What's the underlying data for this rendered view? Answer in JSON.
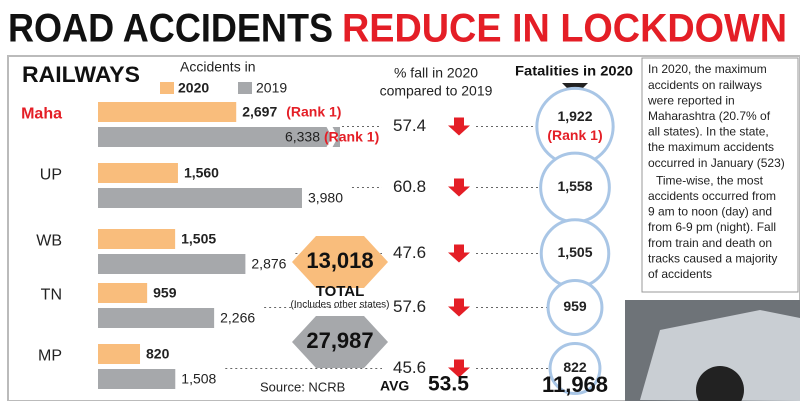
{
  "chart_data": {
    "type": "hbar",
    "title_part1": "ROAD ACCIDENTS",
    "title_part2": "REDUCE IN LOCKDOWN",
    "subtitle": "RAILWAYS",
    "legend_title": "Accidents in",
    "categories": [
      "Maha",
      "UP",
      "WB",
      "TN",
      "MP"
    ],
    "series": [
      {
        "name": "2020",
        "color": "#f9bd7c",
        "values": [
          2697,
          1560,
          1505,
          959,
          820
        ],
        "value_labels": [
          "2,697",
          "1,560",
          "1,505",
          "959",
          "820"
        ]
      },
      {
        "name": "2019",
        "color": "#a6a8ab",
        "values": [
          6338,
          3980,
          2876,
          2266,
          1508
        ],
        "value_labels": [
          "6,338",
          "3,980",
          "2,876",
          "2,266",
          "1,508"
        ]
      }
    ],
    "xlim": [
      0,
      4000
    ],
    "rank_annotations": [
      "(Rank 1)",
      "(Rank 1)",
      "(Rank 1)"
    ],
    "fall_header": [
      "% fall in 2020",
      "compared to 2019"
    ],
    "fall_values": [
      57.4,
      60.8,
      47.6,
      57.6,
      45.6
    ],
    "fatalities_header": "Fatalities in 2020",
    "fatalities": [
      1922,
      1558,
      1505,
      959,
      822
    ],
    "fatalities_labels": [
      "1,922",
      "1,558",
      "1,505",
      "959",
      "822"
    ],
    "total_2020": 13018,
    "total_2020_label": "13,018",
    "total_label": "TOTAL",
    "total_note": "(Includes other states)",
    "total_2019": 27987,
    "total_2019_label": "27,987",
    "avg_label": "AVG",
    "avg_fall": 53.5,
    "total_fatalities": 11968,
    "total_fatalities_label": "11,968",
    "source": "Source: NCRB",
    "note": [
      "In 2020, the maximum",
      "accidents on railways",
      "were reported in",
      "Maharashtra (20.7% of",
      "all states). In the state,",
      "the maximum accidents",
      "occurred in January (523)",
      "Time-wise, the most",
      "accidents occurred from",
      "9 am to noon (day) and",
      "from 6-9 pm (night). Fall",
      "from train and death on",
      "tracks caused a majority",
      "of accidents"
    ]
  }
}
